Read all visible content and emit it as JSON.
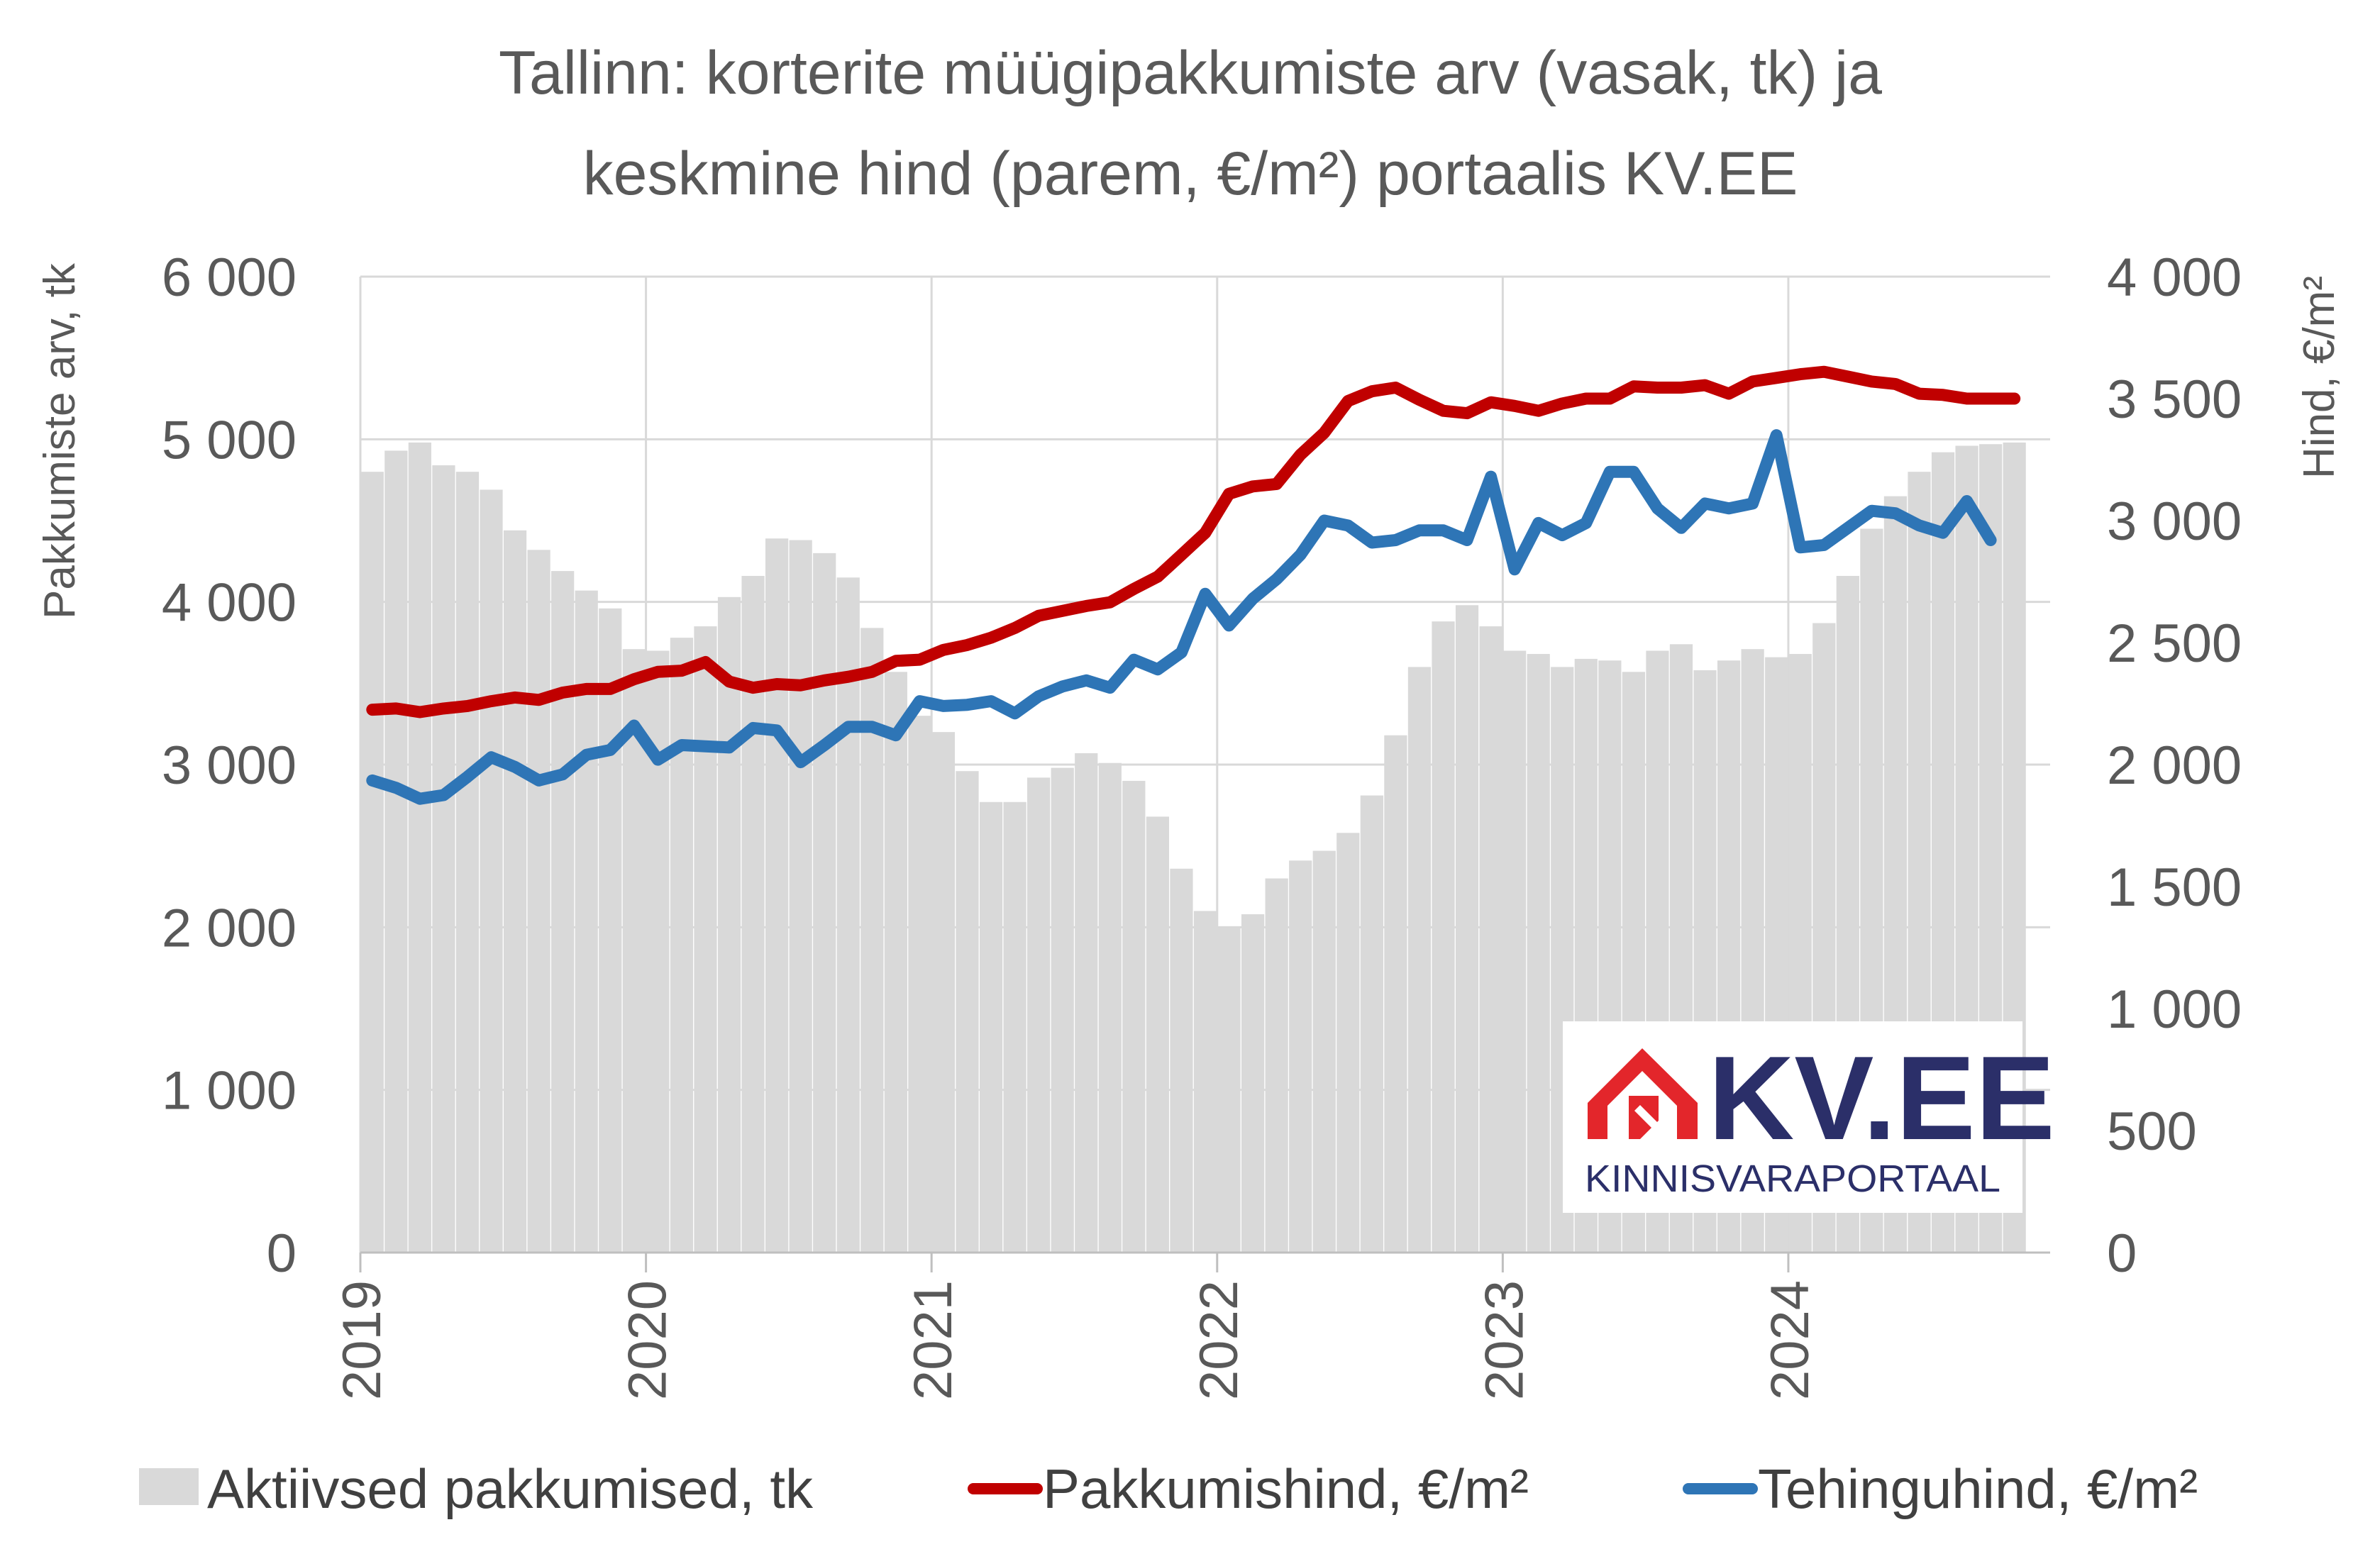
{
  "chart_data": {
    "type": "bar",
    "title": [
      "Tallinn: korterite müügipakkumiste arv (vasak, tk) ja",
      "keskmine hind (parem, €/m²) portaalis KV.EE"
    ],
    "ylabel": "Pakkumiste arv, tk",
    "y2label": "Hind, €/m²",
    "ylim": [
      0,
      6000
    ],
    "y2lim": [
      0,
      4000
    ],
    "yticks": [
      "0",
      "1 000",
      "2 000",
      "3 000",
      "4 000",
      "5 000",
      "6 000"
    ],
    "y2ticks": [
      "0",
      "500",
      "1 000",
      "1 500",
      "2 000",
      "2 500",
      "3 000",
      "3 500",
      "4 000"
    ],
    "xticks": [
      "2019",
      "2020",
      "2021",
      "2022",
      "2023",
      "2024"
    ],
    "x_start": "2019-01",
    "grid": true,
    "legend_position": "bottom",
    "series": [
      {
        "name": "Aktiivsed pakkumised, tk",
        "type": "bar",
        "axis": "left",
        "color": "#d9d9d9",
        "values": [
          4800,
          4930,
          4980,
          4840,
          4800,
          4690,
          4440,
          4320,
          4190,
          4070,
          3960,
          3710,
          3700,
          3780,
          3850,
          4030,
          4160,
          4390,
          4380,
          4300,
          4150,
          3840,
          3570,
          3300,
          3200,
          2960,
          2770,
          2770,
          2920,
          2980,
          3070,
          3010,
          2900,
          2680,
          2360,
          2100,
          2000,
          2080,
          2300,
          2410,
          2470,
          2580,
          2810,
          3180,
          3600,
          3880,
          3980,
          3850,
          3700,
          3680,
          3600,
          3650,
          3640,
          3570,
          3700,
          3740,
          3580,
          3640,
          3710,
          3660,
          3680,
          3870,
          4160,
          4450,
          4650,
          4800,
          4920,
          4960,
          4970,
          4980
        ]
      },
      {
        "name": "Pakkumishind, €/m²",
        "type": "line",
        "axis": "right",
        "color": "#c00000",
        "values": [
          2225,
          2230,
          2215,
          2230,
          2240,
          2260,
          2275,
          2265,
          2295,
          2310,
          2310,
          2350,
          2380,
          2385,
          2420,
          2340,
          2315,
          2330,
          2325,
          2345,
          2360,
          2380,
          2425,
          2430,
          2470,
          2490,
          2520,
          2560,
          2610,
          2630,
          2650,
          2665,
          2720,
          2770,
          2860,
          2950,
          3110,
          3140,
          3150,
          3270,
          3360,
          3490,
          3530,
          3545,
          3495,
          3450,
          3440,
          3485,
          3470,
          3450,
          3480,
          3500,
          3500,
          3550,
          3545,
          3545,
          3555,
          3520,
          3570,
          3585,
          3600,
          3610,
          3590,
          3570,
          3560,
          3520,
          3515,
          3500,
          3500,
          3500
        ]
      },
      {
        "name": "Tehinguhind, €/m²",
        "type": "line",
        "axis": "right",
        "color": "#2e75b6",
        "values": [
          1935,
          1905,
          1860,
          1875,
          1950,
          2030,
          1990,
          1935,
          1960,
          2040,
          2060,
          2160,
          2020,
          2080,
          2075,
          2070,
          2150,
          2140,
          2010,
          2080,
          2155,
          2155,
          2120,
          2260,
          2240,
          2245,
          2260,
          2210,
          2280,
          2320,
          2345,
          2315,
          2430,
          2390,
          2460,
          2700,
          2570,
          2680,
          2760,
          2860,
          3000,
          2980,
          2910,
          2920,
          2960,
          2960,
          2920,
          3180,
          2800,
          2990,
          2940,
          2990,
          3200,
          3200,
          3050,
          2970,
          3070,
          3050,
          3070,
          3350,
          2890,
          2900,
          2970,
          3040,
          3030,
          2980,
          2950,
          3080,
          2920,
          null
        ]
      }
    ]
  },
  "logo": {
    "main": "KV.EE",
    "sub": "KINNISVARAPORTAAL"
  }
}
